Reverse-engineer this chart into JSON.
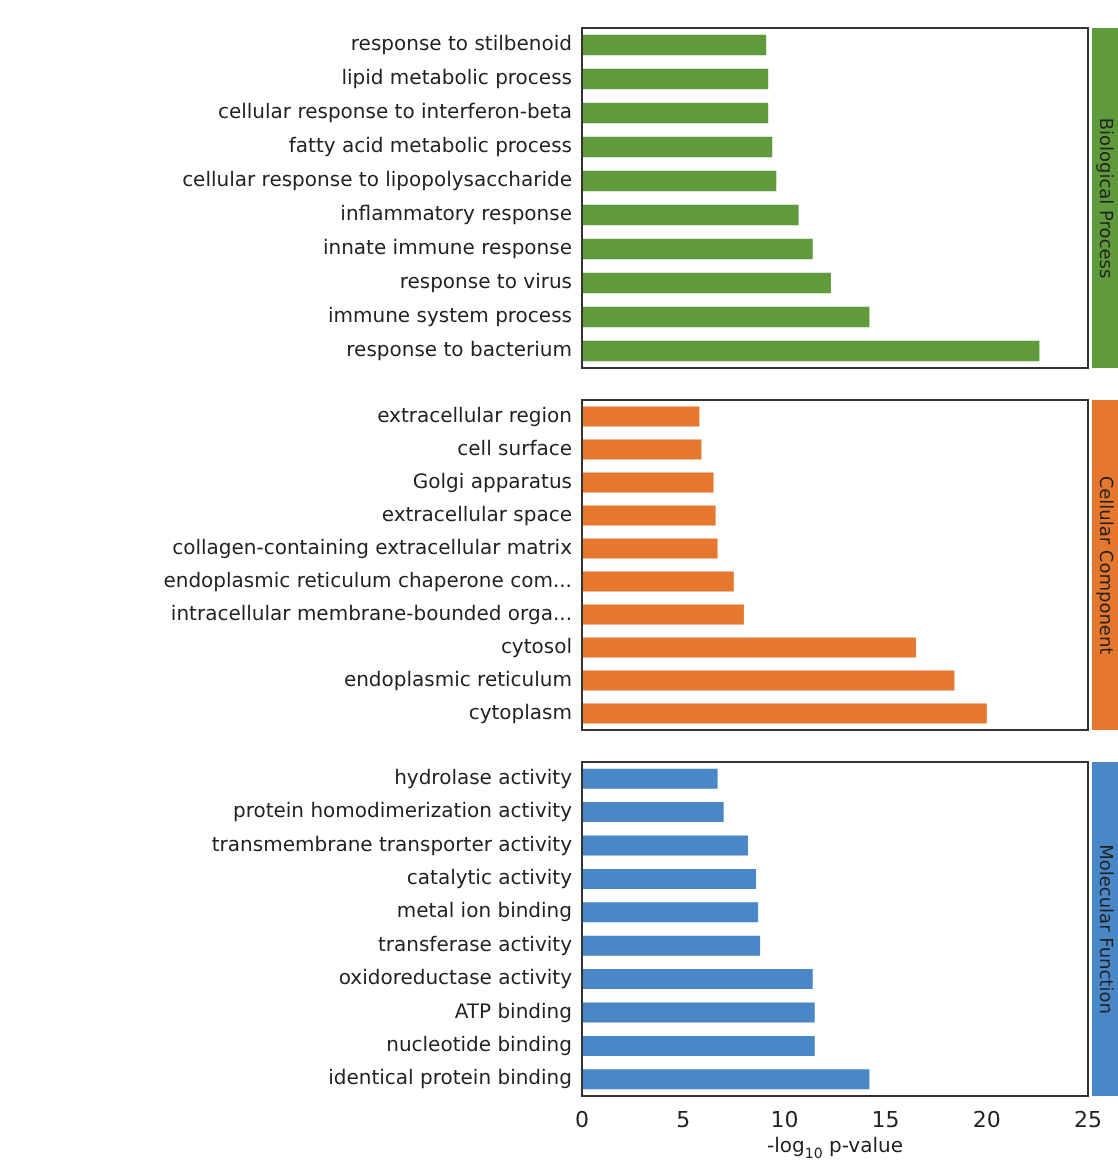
{
  "chart_data": [
    {
      "type": "bar",
      "orientation": "horizontal",
      "title": "Biological Process",
      "categories": [
        "response to stilbenoid",
        "lipid metabolic process",
        "cellular response to interferon-beta",
        "fatty acid metabolic process",
        "cellular response to lipopolysaccharide",
        "inflammatory response",
        "innate immune response",
        "response to virus",
        "immune system process",
        "response to bacterium"
      ],
      "values": [
        9.1,
        9.2,
        9.2,
        9.4,
        9.6,
        10.7,
        11.4,
        12.3,
        14.2,
        22.6
      ],
      "color": "#5f9a3c",
      "xlim": [
        0,
        25
      ],
      "xticks": [
        0,
        5,
        10,
        15,
        20,
        25
      ],
      "tick_labels": "y"
    },
    {
      "type": "bar",
      "orientation": "horizontal",
      "title": "Cellular Component",
      "categories": [
        "extracellular region",
        "cell surface",
        "Golgi apparatus",
        "extracellular space",
        "collagen-containing extracellular matrix",
        "endoplasmic reticulum chaperone com...",
        "intracellular membrane-bounded orga...",
        "cytosol",
        "endoplasmic reticulum",
        "cytoplasm"
      ],
      "values": [
        5.8,
        5.9,
        6.5,
        6.6,
        6.7,
        7.5,
        8.0,
        16.5,
        18.4,
        20.0
      ],
      "color": "#e5772e",
      "xlim": [
        0,
        25
      ],
      "xticks": [
        0,
        5,
        10,
        15,
        20,
        25
      ],
      "tick_labels": "y"
    },
    {
      "type": "bar",
      "orientation": "horizontal",
      "title": "Molecular Function",
      "categories": [
        "hydrolase activity",
        "protein homodimerization activity",
        "transmembrane transporter activity",
        "catalytic activity",
        "metal ion binding",
        "transferase activity",
        "oxidoreductase activity",
        "ATP binding",
        "nucleotide binding",
        "identical protein binding"
      ],
      "values": [
        6.7,
        7.0,
        8.2,
        8.6,
        8.7,
        8.8,
        11.4,
        11.5,
        11.5,
        14.2
      ],
      "color": "#4a87c6",
      "xlim": [
        0,
        25
      ],
      "xticks": [
        0,
        5,
        10,
        15,
        20,
        25
      ],
      "xlabel": "-log$_{10}$ p-value"
    }
  ]
}
